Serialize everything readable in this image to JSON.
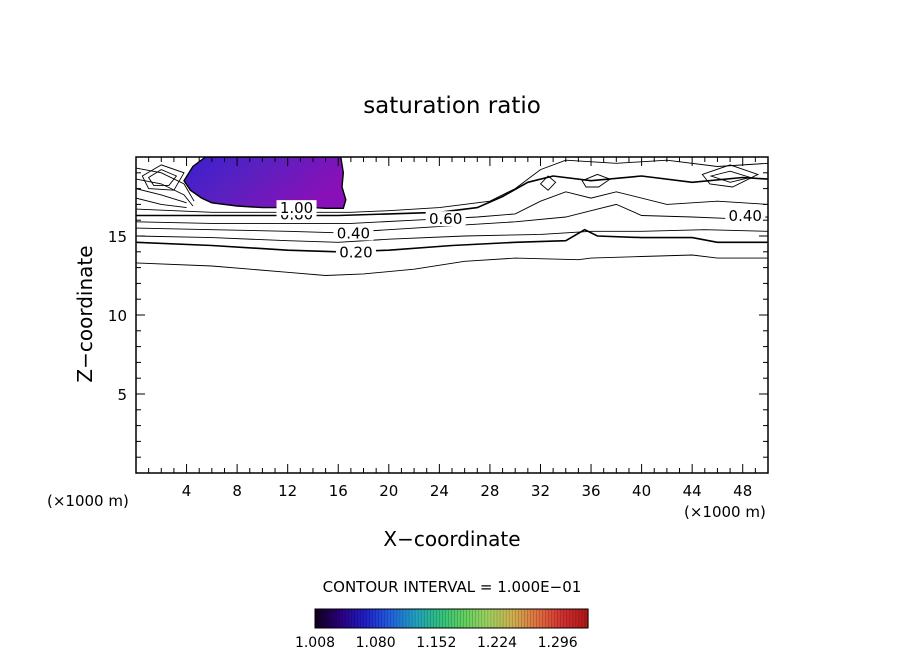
{
  "chart_data": {
    "type": "contour",
    "title": "saturation ratio",
    "xlabel": "X−coordinate",
    "ylabel": "Z−coordinate",
    "x_unit_left": "(×1000 m)",
    "x_unit_right": "(×1000 m)",
    "xlim": [
      0,
      50
    ],
    "ylim": [
      0,
      20
    ],
    "x_ticks": [
      "4",
      "8",
      "12",
      "16",
      "20",
      "24",
      "28",
      "32",
      "36",
      "40",
      "44",
      "48"
    ],
    "x_tick_values": [
      4,
      8,
      12,
      16,
      20,
      24,
      28,
      32,
      36,
      40,
      44,
      48
    ],
    "y_ticks": [
      "5",
      "10",
      "15"
    ],
    "y_tick_values": [
      5,
      10,
      15
    ],
    "contour_interval_text": "CONTOUR INTERVAL = 1.000E−01",
    "contour_labels": [
      {
        "text": "0.20",
        "x": 17.4,
        "z": 13.9
      },
      {
        "text": "0.40",
        "x": 17.2,
        "z": 15.1
      },
      {
        "text": "0.60",
        "x": 24.5,
        "z": 16.0
      },
      {
        "text": "0.80",
        "x": 12.7,
        "z": 16.3
      },
      {
        "text": "1.00",
        "x": 12.7,
        "z": 16.7
      },
      {
        "text": "0.40",
        "x": 48.2,
        "z": 16.2
      }
    ],
    "contours": [
      {
        "level": 0.2,
        "points": [
          [
            0,
            13.3
          ],
          [
            6,
            13.1
          ],
          [
            12,
            12.7
          ],
          [
            15,
            12.5
          ],
          [
            18,
            12.6
          ],
          [
            22,
            12.9
          ],
          [
            26,
            13.4
          ],
          [
            30,
            13.6
          ],
          [
            35,
            13.5
          ],
          [
            36,
            13.6
          ],
          [
            40,
            13.7
          ],
          [
            44,
            13.8
          ],
          [
            46,
            13.6
          ],
          [
            50,
            13.6
          ]
        ]
      },
      {
        "level": 0.4,
        "points": [
          [
            0,
            14.6
          ],
          [
            6,
            14.4
          ],
          [
            12,
            14.1
          ],
          [
            16,
            14.0
          ],
          [
            20,
            14.1
          ],
          [
            25,
            14.4
          ],
          [
            30,
            14.6
          ],
          [
            34,
            14.7
          ],
          [
            35.5,
            15.4
          ],
          [
            36.5,
            15.0
          ],
          [
            40,
            14.9
          ],
          [
            44,
            14.9
          ],
          [
            46,
            14.6
          ],
          [
            50,
            14.6
          ]
        ]
      },
      {
        "level": 0.5,
        "points": [
          [
            0,
            15.0
          ],
          [
            6,
            14.9
          ],
          [
            12,
            14.7
          ],
          [
            16,
            14.6
          ],
          [
            20,
            14.8
          ],
          [
            26,
            15.0
          ],
          [
            32,
            15.1
          ],
          [
            36,
            15.3
          ],
          [
            40,
            15.3
          ],
          [
            45,
            15.4
          ],
          [
            50,
            15.3
          ]
        ]
      },
      {
        "level": 0.6,
        "points": [
          [
            0,
            15.5
          ],
          [
            6,
            15.4
          ],
          [
            12,
            15.3
          ],
          [
            16,
            15.2
          ],
          [
            20,
            15.4
          ],
          [
            26,
            15.7
          ],
          [
            30,
            15.9
          ],
          [
            34,
            16.2
          ],
          [
            36,
            16.6
          ],
          [
            38,
            17.0
          ],
          [
            40,
            16.3
          ],
          [
            44,
            16.2
          ],
          [
            47,
            16.1
          ],
          [
            50,
            16.2
          ]
        ]
      },
      {
        "level": 0.7,
        "points": [
          [
            0,
            15.9
          ],
          [
            6,
            15.8
          ],
          [
            12,
            15.8
          ],
          [
            17,
            15.8
          ],
          [
            22,
            16.0
          ],
          [
            27,
            16.2
          ],
          [
            30,
            16.4
          ],
          [
            32,
            17.2
          ],
          [
            34,
            17.8
          ],
          [
            36,
            17.4
          ],
          [
            38,
            17.8
          ],
          [
            42,
            17.0
          ],
          [
            46,
            17.2
          ],
          [
            50,
            17.0
          ]
        ]
      },
      {
        "level": 0.8,
        "points": [
          [
            0,
            16.3
          ],
          [
            4,
            16.3
          ],
          [
            8,
            16.3
          ],
          [
            12,
            16.3
          ],
          [
            16,
            16.3
          ],
          [
            20,
            16.4
          ],
          [
            24,
            16.5
          ],
          [
            27,
            16.8
          ],
          [
            29,
            17.5
          ],
          [
            31,
            18.4
          ],
          [
            33,
            18.8
          ],
          [
            36,
            18.5
          ],
          [
            40,
            18.8
          ],
          [
            44,
            18.4
          ],
          [
            48,
            18.7
          ],
          [
            50,
            18.6
          ]
        ]
      },
      {
        "level": 0.9,
        "points": [
          [
            0,
            16.7
          ],
          [
            3,
            16.6
          ],
          [
            6,
            16.5
          ],
          [
            10,
            16.5
          ],
          [
            14,
            16.5
          ],
          [
            17,
            16.5
          ],
          [
            20,
            16.6
          ],
          [
            24,
            16.8
          ],
          [
            28,
            17.2
          ],
          [
            30,
            18.0
          ],
          [
            32,
            19.2
          ],
          [
            34,
            19.8
          ],
          [
            38,
            19.6
          ],
          [
            42,
            19.8
          ],
          [
            46,
            19.4
          ],
          [
            50,
            19.6
          ]
        ]
      },
      {
        "level": 0.85,
        "points": [
          [
            0,
            17.4
          ],
          [
            2,
            17.0
          ],
          [
            4,
            16.8
          ]
        ]
      },
      {
        "level": 0.75,
        "points": [
          [
            0,
            18.0
          ],
          [
            2,
            17.6
          ],
          [
            4,
            17.1
          ]
        ]
      },
      {
        "level": 0.65,
        "points": [
          [
            0,
            18.6
          ],
          [
            2,
            18.3
          ],
          [
            3.8,
            17.6
          ],
          [
            4.5,
            16.9
          ]
        ]
      },
      {
        "level": 0.55,
        "points": [
          [
            0,
            19.3
          ],
          [
            2,
            19.0
          ],
          [
            3.8,
            18.3
          ],
          [
            4.6,
            17.2
          ]
        ]
      }
    ],
    "closed_contours": [
      {
        "level": 0.8,
        "points": [
          [
            1.0,
            18.7
          ],
          [
            2.0,
            19.2
          ],
          [
            3.2,
            18.8
          ],
          [
            2.6,
            18.2
          ],
          [
            1.4,
            18.2
          ]
        ]
      },
      {
        "level": 0.7,
        "points": [
          [
            0.5,
            18.8
          ],
          [
            2.0,
            19.5
          ],
          [
            3.8,
            19.0
          ],
          [
            3.0,
            17.9
          ],
          [
            1.0,
            18.0
          ]
        ]
      },
      {
        "level": 0.9,
        "points": [
          [
            32.0,
            18.3
          ],
          [
            32.6,
            18.8
          ],
          [
            33.2,
            18.4
          ],
          [
            32.6,
            17.9
          ]
        ]
      },
      {
        "level": 0.6,
        "points": [
          [
            35.3,
            18.5
          ],
          [
            36.5,
            18.9
          ],
          [
            37.5,
            18.6
          ],
          [
            36.6,
            18.1
          ],
          [
            35.6,
            18.1
          ]
        ]
      },
      {
        "level": 0.7,
        "points": [
          [
            45.5,
            18.8
          ],
          [
            47.0,
            19.1
          ],
          [
            48.6,
            18.7
          ],
          [
            47.0,
            18.4
          ]
        ]
      },
      {
        "level": 0.6,
        "points": [
          [
            44.8,
            18.9
          ],
          [
            47.0,
            19.5
          ],
          [
            49.2,
            18.9
          ],
          [
            47.2,
            18.1
          ],
          [
            45.4,
            18.3
          ]
        ]
      }
    ],
    "shaded_region": {
      "description": "supersaturated (ratio > 1.0)",
      "boundary": [
        [
          3.8,
          18.5
        ],
        [
          4.3,
          17.9
        ],
        [
          5.2,
          17.4
        ],
        [
          6.0,
          17.1
        ],
        [
          8.0,
          16.9
        ],
        [
          10.0,
          16.8
        ],
        [
          12.0,
          16.8
        ],
        [
          14.0,
          16.8
        ],
        [
          15.0,
          16.75
        ],
        [
          16.4,
          16.75
        ],
        [
          16.6,
          17.3
        ],
        [
          16.3,
          18.1
        ],
        [
          16.4,
          19.0
        ],
        [
          16.2,
          20.0
        ],
        [
          5.5,
          20.0
        ],
        [
          4.5,
          19.4
        ]
      ],
      "approx_values": {
        "low": 1.02,
        "high": 1.12
      }
    },
    "colorbar": {
      "min": 1.008,
      "max": 1.332,
      "tick_labels": [
        "1.008",
        "1.080",
        "1.152",
        "1.224",
        "1.296"
      ],
      "tick_values": [
        1.008,
        1.08,
        1.152,
        1.224,
        1.296
      ],
      "colors": [
        "#120020",
        "#2a0080",
        "#2020c8",
        "#2060e0",
        "#20a0c0",
        "#30c080",
        "#60d060",
        "#a0d060",
        "#d0b050",
        "#e07040",
        "#d03030",
        "#b01818"
      ]
    }
  }
}
